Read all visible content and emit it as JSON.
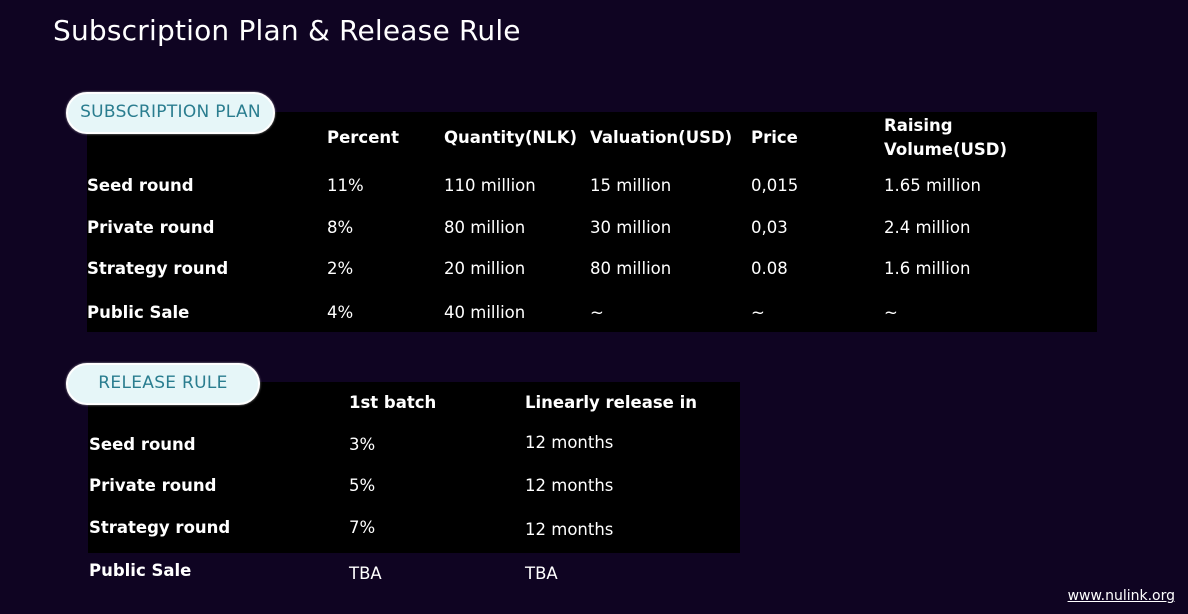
{
  "title": "Subscription Plan & Release Rule",
  "subscription": {
    "section_label": "SUBSCRIPTION PLAN",
    "headers": [
      "Percent",
      "Quantity(NLK)",
      "Valuation(USD)",
      "Price",
      "Raising",
      "Volume(USD)"
    ],
    "rows": [
      {
        "name": "Seed round",
        "percent": "11%",
        "quantity": "110 million",
        "valuation": "15 million",
        "price": "0,015",
        "raising": "1.65 million"
      },
      {
        "name": "Private round",
        "percent": "8%",
        "quantity": "80 million",
        "valuation": "30 million",
        "price": "0,03",
        "raising": "2.4 million"
      },
      {
        "name": "Strategy round",
        "percent": "2%",
        "quantity": "20 million",
        "valuation": "80 million",
        "price": "0.08",
        "raising": "1.6 million"
      },
      {
        "name": "Public Sale",
        "percent": "4%",
        "quantity": "40 million",
        "valuation": "~",
        "price": "~",
        "raising": "~"
      }
    ]
  },
  "release": {
    "section_label": "RELEASE RULE",
    "headers": [
      "1st batch",
      "Linearly release in"
    ],
    "rows": [
      {
        "name": "Seed round",
        "batch": "3%",
        "linear": "12 months"
      },
      {
        "name": "Private round",
        "batch": "5%",
        "linear": "12 months"
      },
      {
        "name": "Strategy round",
        "batch": "7%",
        "linear": "12 months"
      },
      {
        "name": "Public Sale",
        "batch": "TBA",
        "linear": "TBA"
      }
    ]
  },
  "footer": {
    "website": "www.nulink.org"
  },
  "colors": {
    "background": "#0f0422",
    "table_background": "#000000",
    "pill_background": "#e6f6f8",
    "pill_text": "#2a7d8f"
  }
}
